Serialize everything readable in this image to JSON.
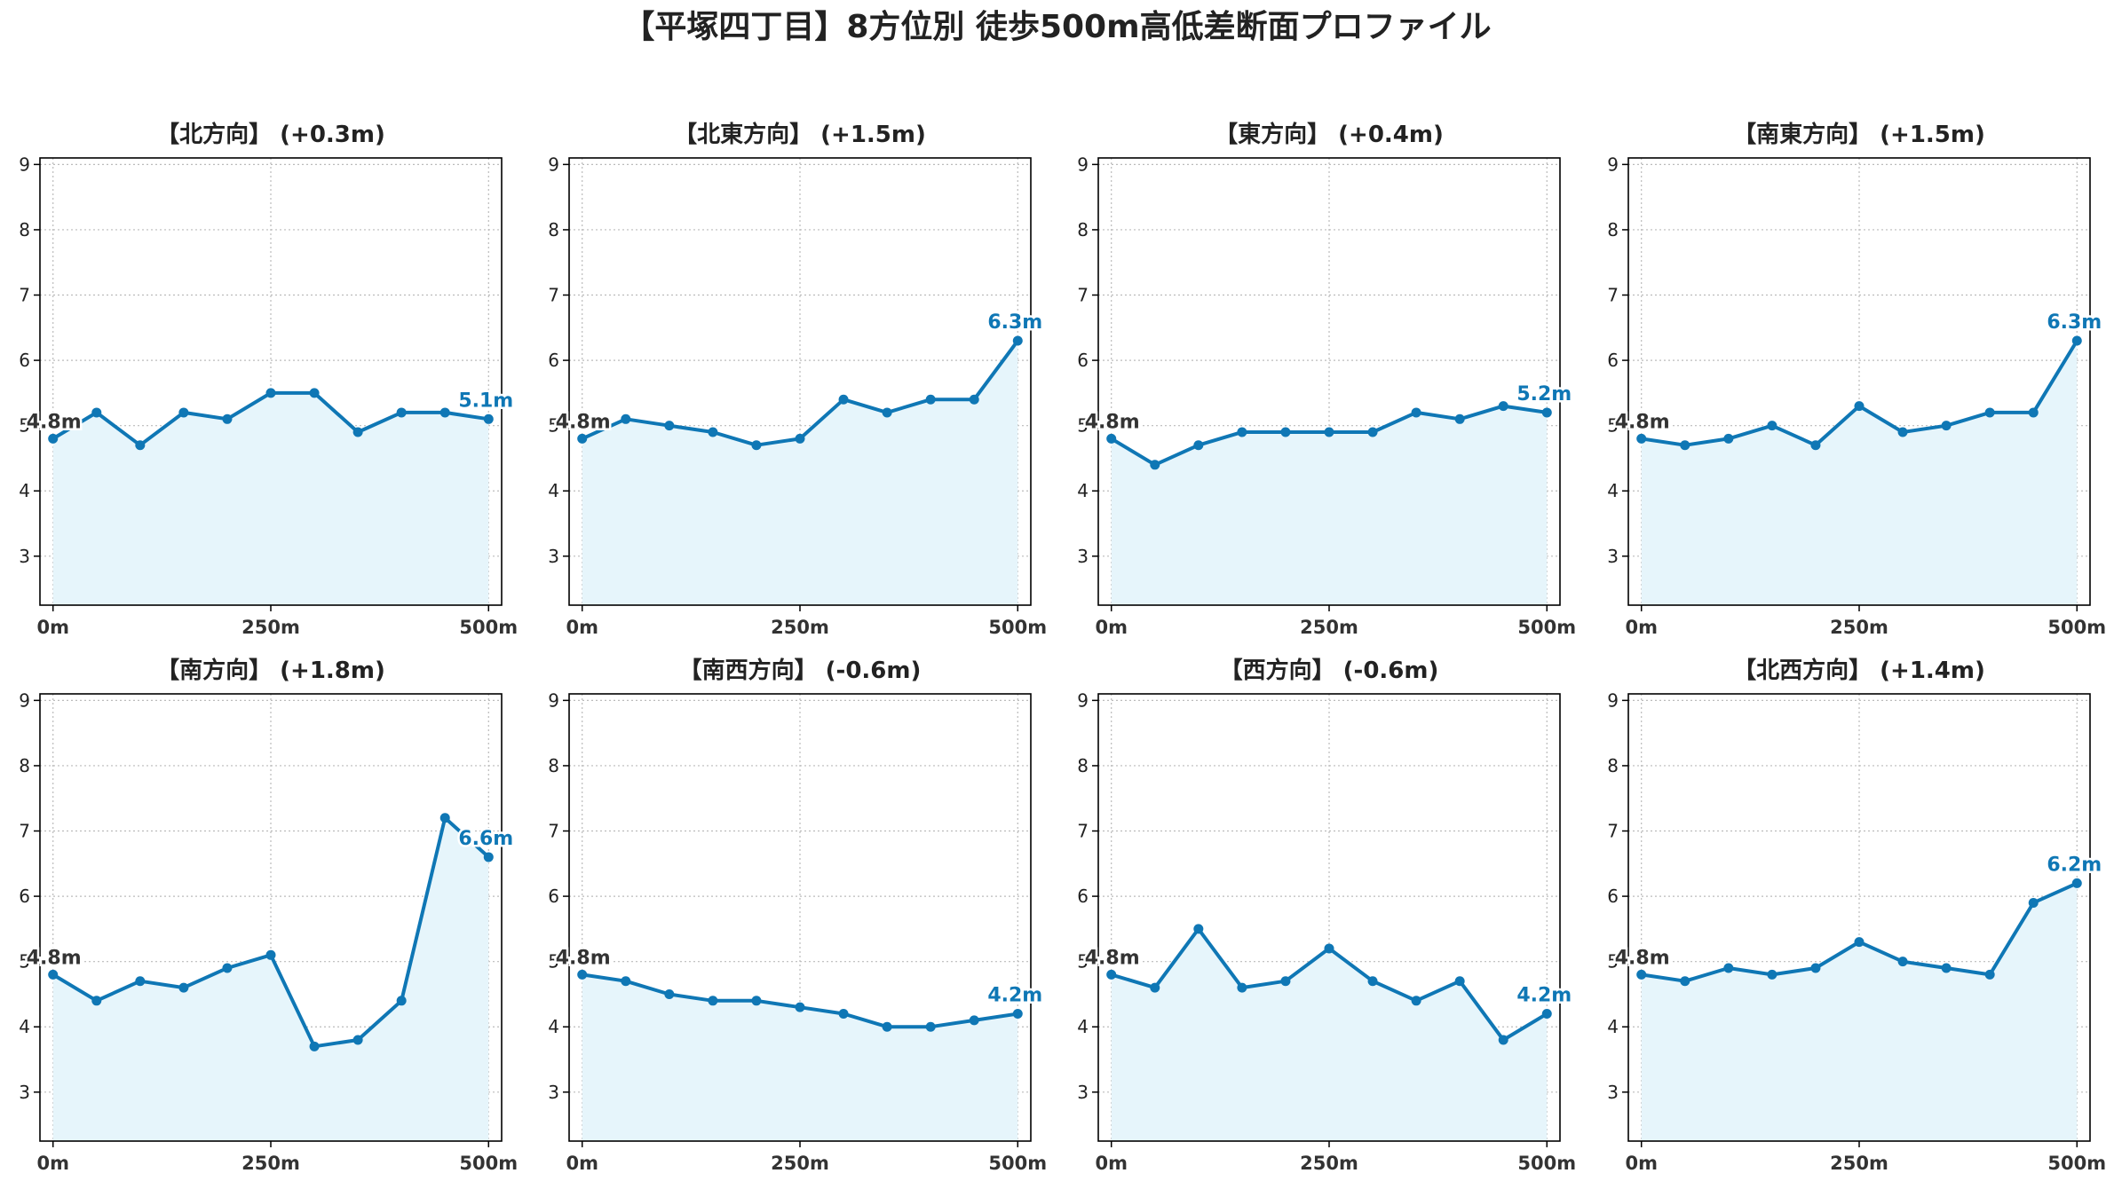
{
  "figure": {
    "title": "【平塚四丁目】8方位別 徒歩500m高低差断面プロファイル"
  },
  "colors": {
    "line": "#0f77b5",
    "fill": "#e6f5fb",
    "start_label": "#333333",
    "end_label": "#0f77b5",
    "grid": "#bbbbbb"
  },
  "chart_data": [
    {
      "type": "area",
      "title": "【北方向】 (+0.3m)",
      "x": [
        0,
        50,
        100,
        150,
        200,
        250,
        300,
        350,
        400,
        450,
        500
      ],
      "y": [
        4.8,
        5.2,
        4.7,
        5.2,
        5.1,
        5.5,
        5.5,
        4.9,
        5.2,
        5.2,
        5.1
      ],
      "xticks": [
        0,
        250,
        500
      ],
      "xtick_labels": [
        "0m",
        "250m",
        "500m"
      ],
      "yticks": [
        3,
        4,
        5,
        6,
        7,
        8,
        9
      ],
      "ytick_labels": [
        "3",
        "4",
        "5",
        "6",
        "7",
        "8",
        "9"
      ],
      "xlim": [
        -15,
        515
      ],
      "ylim": [
        2.25,
        9.1
      ],
      "grid": true,
      "start_label": "4.8m",
      "end_label": "5.1m"
    },
    {
      "type": "area",
      "title": "【北東方向】 (+1.5m)",
      "x": [
        0,
        50,
        100,
        150,
        200,
        250,
        300,
        350,
        400,
        450,
        500
      ],
      "y": [
        4.8,
        5.1,
        5.0,
        4.9,
        4.7,
        4.8,
        5.4,
        5.2,
        5.4,
        5.4,
        6.3
      ],
      "xticks": [
        0,
        250,
        500
      ],
      "xtick_labels": [
        "0m",
        "250m",
        "500m"
      ],
      "yticks": [
        3,
        4,
        5,
        6,
        7,
        8,
        9
      ],
      "ytick_labels": [
        "3",
        "4",
        "5",
        "6",
        "7",
        "8",
        "9"
      ],
      "xlim": [
        -15,
        515
      ],
      "ylim": [
        2.25,
        9.1
      ],
      "grid": true,
      "start_label": "4.8m",
      "end_label": "6.3m"
    },
    {
      "type": "area",
      "title": "【東方向】 (+0.4m)",
      "x": [
        0,
        50,
        100,
        150,
        200,
        250,
        300,
        350,
        400,
        450,
        500
      ],
      "y": [
        4.8,
        4.4,
        4.7,
        4.9,
        4.9,
        4.9,
        4.9,
        5.2,
        5.1,
        5.3,
        5.2
      ],
      "xticks": [
        0,
        250,
        500
      ],
      "xtick_labels": [
        "0m",
        "250m",
        "500m"
      ],
      "yticks": [
        3,
        4,
        5,
        6,
        7,
        8,
        9
      ],
      "ytick_labels": [
        "3",
        "4",
        "5",
        "6",
        "7",
        "8",
        "9"
      ],
      "xlim": [
        -15,
        515
      ],
      "ylim": [
        2.25,
        9.1
      ],
      "grid": true,
      "start_label": "4.8m",
      "end_label": "5.2m"
    },
    {
      "type": "area",
      "title": "【南東方向】 (+1.5m)",
      "x": [
        0,
        50,
        100,
        150,
        200,
        250,
        300,
        350,
        400,
        450,
        500
      ],
      "y": [
        4.8,
        4.7,
        4.8,
        5.0,
        4.7,
        5.3,
        4.9,
        5.0,
        5.2,
        5.2,
        6.3
      ],
      "xticks": [
        0,
        250,
        500
      ],
      "xtick_labels": [
        "0m",
        "250m",
        "500m"
      ],
      "yticks": [
        3,
        4,
        5,
        6,
        7,
        8,
        9
      ],
      "ytick_labels": [
        "3",
        "4",
        "5",
        "6",
        "7",
        "8",
        "9"
      ],
      "xlim": [
        -15,
        515
      ],
      "ylim": [
        2.25,
        9.1
      ],
      "grid": true,
      "start_label": "4.8m",
      "end_label": "6.3m"
    },
    {
      "type": "area",
      "title": "【南方向】 (+1.8m)",
      "x": [
        0,
        50,
        100,
        150,
        200,
        250,
        300,
        350,
        400,
        450,
        500
      ],
      "y": [
        4.8,
        4.4,
        4.7,
        4.6,
        4.9,
        5.1,
        3.7,
        3.8,
        4.4,
        7.2,
        6.6
      ],
      "xticks": [
        0,
        250,
        500
      ],
      "xtick_labels": [
        "0m",
        "250m",
        "500m"
      ],
      "yticks": [
        3,
        4,
        5,
        6,
        7,
        8,
        9
      ],
      "ytick_labels": [
        "3",
        "4",
        "5",
        "6",
        "7",
        "8",
        "9"
      ],
      "xlim": [
        -15,
        515
      ],
      "ylim": [
        2.25,
        9.1
      ],
      "grid": true,
      "start_label": "4.8m",
      "end_label": "6.6m"
    },
    {
      "type": "area",
      "title": "【南西方向】 (-0.6m)",
      "x": [
        0,
        50,
        100,
        150,
        200,
        250,
        300,
        350,
        400,
        450,
        500
      ],
      "y": [
        4.8,
        4.7,
        4.5,
        4.4,
        4.4,
        4.3,
        4.2,
        4.0,
        4.0,
        4.1,
        4.2
      ],
      "xticks": [
        0,
        250,
        500
      ],
      "xtick_labels": [
        "0m",
        "250m",
        "500m"
      ],
      "yticks": [
        3,
        4,
        5,
        6,
        7,
        8,
        9
      ],
      "ytick_labels": [
        "3",
        "4",
        "5",
        "6",
        "7",
        "8",
        "9"
      ],
      "xlim": [
        -15,
        515
      ],
      "ylim": [
        2.25,
        9.1
      ],
      "grid": true,
      "start_label": "4.8m",
      "end_label": "4.2m"
    },
    {
      "type": "area",
      "title": "【西方向】 (-0.6m)",
      "x": [
        0,
        50,
        100,
        150,
        200,
        250,
        300,
        350,
        400,
        450,
        500
      ],
      "y": [
        4.8,
        4.6,
        5.5,
        4.6,
        4.7,
        5.2,
        4.7,
        4.4,
        4.7,
        3.8,
        4.2
      ],
      "xticks": [
        0,
        250,
        500
      ],
      "xtick_labels": [
        "0m",
        "250m",
        "500m"
      ],
      "yticks": [
        3,
        4,
        5,
        6,
        7,
        8,
        9
      ],
      "ytick_labels": [
        "3",
        "4",
        "5",
        "6",
        "7",
        "8",
        "9"
      ],
      "xlim": [
        -15,
        515
      ],
      "ylim": [
        2.25,
        9.1
      ],
      "grid": true,
      "start_label": "4.8m",
      "end_label": "4.2m"
    },
    {
      "type": "area",
      "title": "【北西方向】 (+1.4m)",
      "x": [
        0,
        50,
        100,
        150,
        200,
        250,
        300,
        350,
        400,
        450,
        500
      ],
      "y": [
        4.8,
        4.7,
        4.9,
        4.8,
        4.9,
        5.3,
        5.0,
        4.9,
        4.8,
        5.9,
        6.2
      ],
      "xticks": [
        0,
        250,
        500
      ],
      "xtick_labels": [
        "0m",
        "250m",
        "500m"
      ],
      "yticks": [
        3,
        4,
        5,
        6,
        7,
        8,
        9
      ],
      "ytick_labels": [
        "3",
        "4",
        "5",
        "6",
        "7",
        "8",
        "9"
      ],
      "xlim": [
        -15,
        515
      ],
      "ylim": [
        2.25,
        9.1
      ],
      "grid": true,
      "start_label": "4.8m",
      "end_label": "6.2m"
    }
  ]
}
